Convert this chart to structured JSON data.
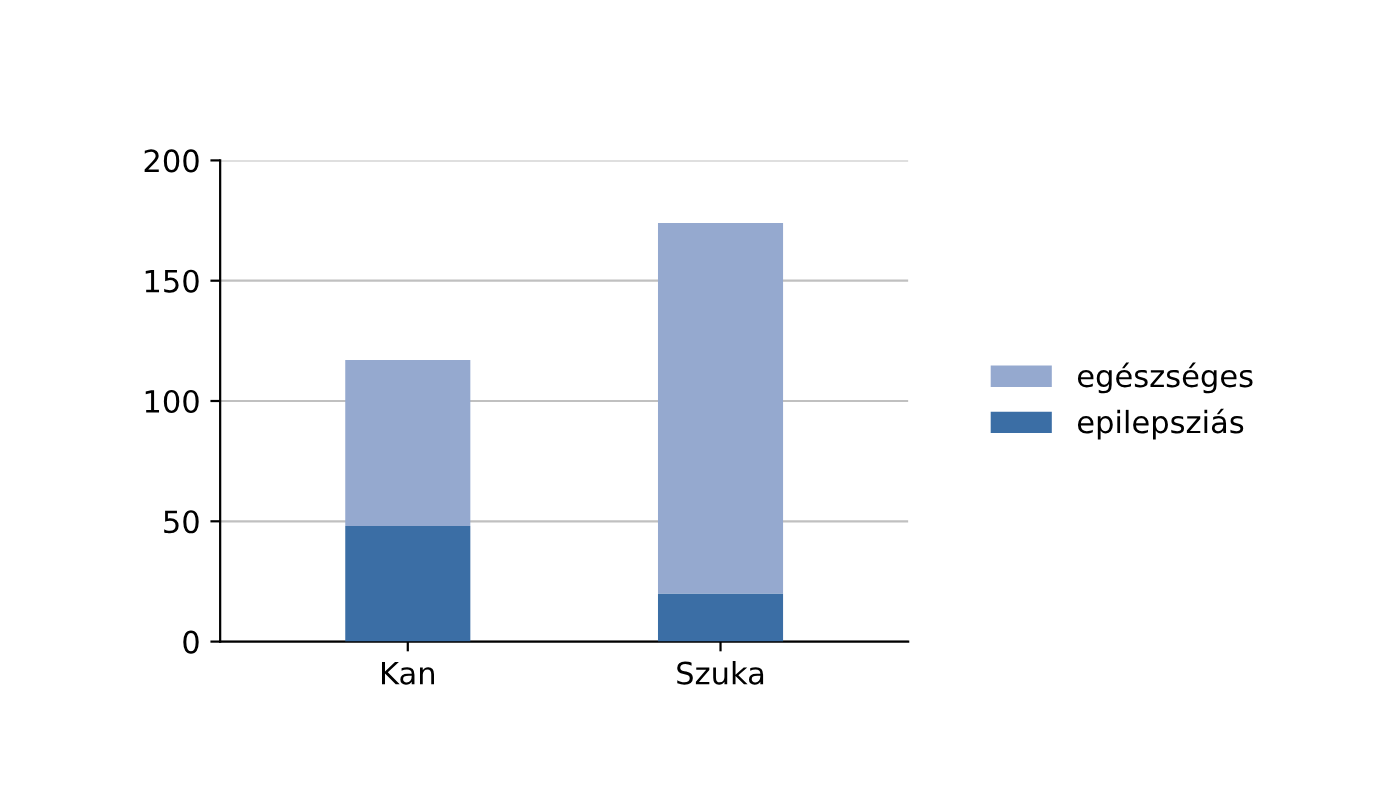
{
  "chart_data": {
    "type": "bar",
    "stacked": true,
    "categories": [
      "Kan",
      "Szuka"
    ],
    "series": [
      {
        "name": "epilepsziás",
        "color": "#3b6ea5",
        "values": [
          48,
          20
        ]
      },
      {
        "name": "egészséges",
        "color": "#95a9cf",
        "values": [
          69,
          154
        ]
      }
    ],
    "ylim": [
      0,
      200
    ],
    "yticks": [
      0,
      50,
      100,
      150,
      200
    ],
    "grid": "y",
    "legend": "right"
  }
}
